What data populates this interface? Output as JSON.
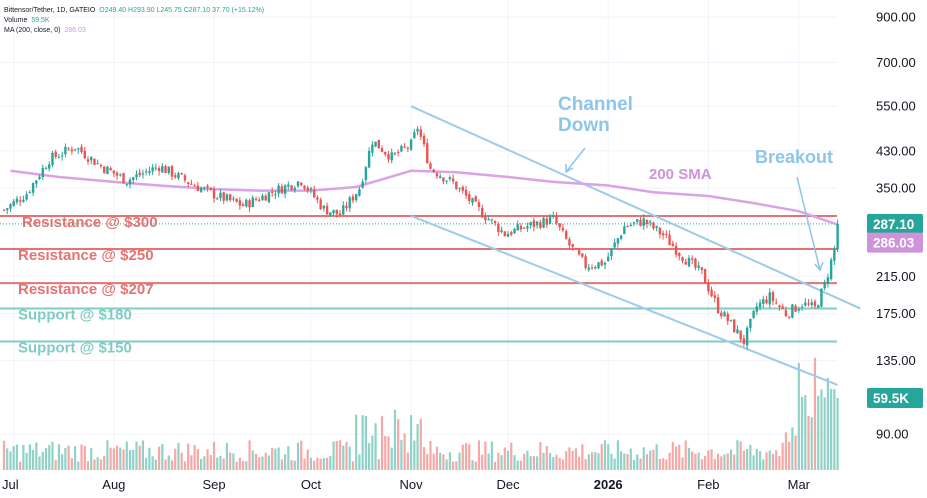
{
  "legend": {
    "symbol_line": "Bittensor/Tether, 1D, GATEIO",
    "ohlc": "O249.40 H293.90 L245.75 C287.10 37.70 (+15.12%)",
    "volume_label": "Volume",
    "volume_value": "59.5K",
    "ma_label": "MA (200, close, 0)",
    "ma_value": "286.03"
  },
  "colors": {
    "up": "#26a69a",
    "down": "#ef5350",
    "vol_up": "#8fd3c8",
    "vol_down": "#f5a8a6",
    "resistance": "#e57373",
    "support": "#80cbc4",
    "channel": "#9ecbe8",
    "sma": "#d9a3e6",
    "annotation_blue": "#8ec5ea",
    "annotation_purple": "#ce93d8"
  },
  "chart_data": {
    "type": "candlestick",
    "title": "Bittensor/Tether, 1D, GATEIO",
    "x_ticks": [
      "Jul",
      "Aug",
      "Sep",
      "Oct",
      "Nov",
      "Dec",
      "2026",
      "Feb",
      "Mar"
    ],
    "y_ticks": [
      "900.00",
      "700.00",
      "550.00",
      "430.00",
      "350.00",
      "215.00",
      "175.00",
      "135.00",
      "90.00"
    ],
    "y_scale": "log",
    "price_labels": [
      {
        "text": "287.10",
        "kind": "last_price"
      },
      {
        "text": "286.03",
        "kind": "sma"
      },
      {
        "text": "59.5K",
        "kind": "volume"
      }
    ],
    "sma_200": [
      {
        "date": "2025-06-30",
        "value": 385
      },
      {
        "date": "2025-07-15",
        "value": 372
      },
      {
        "date": "2025-08-01",
        "value": 362
      },
      {
        "date": "2025-08-15",
        "value": 355
      },
      {
        "date": "2025-09-01",
        "value": 348
      },
      {
        "date": "2025-09-15",
        "value": 345
      },
      {
        "date": "2025-10-01",
        "value": 345
      },
      {
        "date": "2025-10-15",
        "value": 352
      },
      {
        "date": "2025-11-01",
        "value": 385
      },
      {
        "date": "2025-11-15",
        "value": 382
      },
      {
        "date": "2025-12-01",
        "value": 372
      },
      {
        "date": "2025-12-15",
        "value": 362
      },
      {
        "date": "2026-01-01",
        "value": 355
      },
      {
        "date": "2026-01-15",
        "value": 342
      },
      {
        "date": "2026-02-01",
        "value": 335
      },
      {
        "date": "2026-02-15",
        "value": 322
      },
      {
        "date": "2026-03-01",
        "value": 308
      },
      {
        "date": "2026-03-13",
        "value": 286.03
      }
    ],
    "horizontal_levels": [
      {
        "label": "Resistance @ $300",
        "value": 300,
        "kind": "resistance"
      },
      {
        "label": "Resistance @ $250",
        "value": 250,
        "kind": "resistance"
      },
      {
        "label": "Resistance @ $207",
        "value": 207,
        "kind": "resistance"
      },
      {
        "label": "Support @ $180",
        "value": 180,
        "kind": "support"
      },
      {
        "label": "Support @ $150",
        "value": 150,
        "kind": "support"
      }
    ],
    "channel": {
      "label": "Channel\nDown",
      "upper": [
        {
          "date": "2025-11-01",
          "value": 550
        },
        {
          "date": "2026-03-20",
          "value": 180
        }
      ],
      "lower": [
        {
          "date": "2025-11-01",
          "value": 300
        },
        {
          "date": "2026-03-13",
          "value": 118
        }
      ]
    },
    "annotations": [
      "Channel Down",
      "200 SMA",
      "Breakout"
    ],
    "price_anchors": [
      {
        "date": "2025-06-28",
        "value": 310
      },
      {
        "date": "2025-07-05",
        "value": 340
      },
      {
        "date": "2025-07-12",
        "value": 410
      },
      {
        "date": "2025-07-20",
        "value": 440
      },
      {
        "date": "2025-07-28",
        "value": 395
      },
      {
        "date": "2025-08-05",
        "value": 365
      },
      {
        "date": "2025-08-15",
        "value": 395
      },
      {
        "date": "2025-08-25",
        "value": 358
      },
      {
        "date": "2025-09-02",
        "value": 335
      },
      {
        "date": "2025-09-10",
        "value": 318
      },
      {
        "date": "2025-09-20",
        "value": 345
      },
      {
        "date": "2025-09-28",
        "value": 365
      },
      {
        "date": "2025-10-05",
        "value": 312
      },
      {
        "date": "2025-10-10",
        "value": 302
      },
      {
        "date": "2025-10-16",
        "value": 350
      },
      {
        "date": "2025-10-20",
        "value": 455
      },
      {
        "date": "2025-10-26",
        "value": 415
      },
      {
        "date": "2025-11-01",
        "value": 445
      },
      {
        "date": "2025-11-03",
        "value": 490
      },
      {
        "date": "2025-11-07",
        "value": 390
      },
      {
        "date": "2025-11-14",
        "value": 360
      },
      {
        "date": "2025-11-22",
        "value": 310
      },
      {
        "date": "2025-11-30",
        "value": 272
      },
      {
        "date": "2025-12-08",
        "value": 285
      },
      {
        "date": "2025-12-15",
        "value": 295
      },
      {
        "date": "2025-12-20",
        "value": 255
      },
      {
        "date": "2025-12-25",
        "value": 228
      },
      {
        "date": "2025-12-31",
        "value": 232
      },
      {
        "date": "2026-01-06",
        "value": 283
      },
      {
        "date": "2026-01-12",
        "value": 292
      },
      {
        "date": "2026-01-18",
        "value": 270
      },
      {
        "date": "2026-01-24",
        "value": 240
      },
      {
        "date": "2026-01-30",
        "value": 218
      },
      {
        "date": "2026-02-04",
        "value": 180
      },
      {
        "date": "2026-02-08",
        "value": 165
      },
      {
        "date": "2026-02-12",
        "value": 150
      },
      {
        "date": "2026-02-16",
        "value": 182
      },
      {
        "date": "2026-02-20",
        "value": 192
      },
      {
        "date": "2026-02-25",
        "value": 175
      },
      {
        "date": "2026-03-02",
        "value": 185
      },
      {
        "date": "2026-03-06",
        "value": 180
      },
      {
        "date": "2026-03-09",
        "value": 205
      },
      {
        "date": "2026-03-12",
        "value": 249
      },
      {
        "date": "2026-03-13",
        "value": 287.1
      }
    ]
  }
}
